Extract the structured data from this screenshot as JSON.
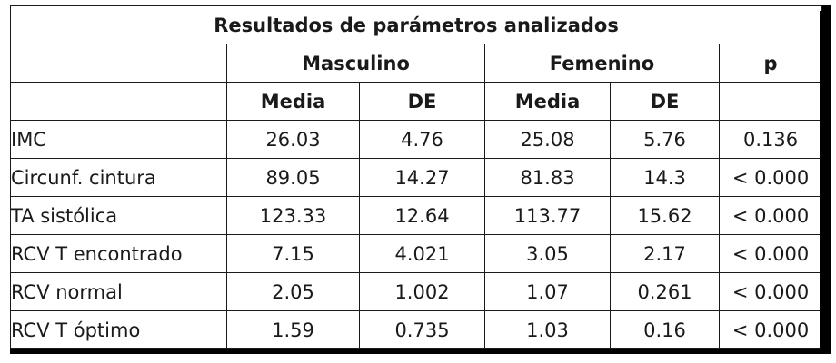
{
  "title": "Resultados de parámetros analizados",
  "groups": {
    "male": "Masculino",
    "female": "Femenino",
    "p": "p"
  },
  "subheaders": {
    "mean": "Media",
    "sd": "DE"
  },
  "rows": [
    {
      "label": "IMC",
      "m_mean": "26.03",
      "m_sd": "4.76",
      "f_mean": "25.08",
      "f_sd": "5.76",
      "p": "0.136"
    },
    {
      "label": "Circunf. cintura",
      "m_mean": "89.05",
      "m_sd": "14.27",
      "f_mean": "81.83",
      "f_sd": "14.3",
      "p": "< 0.000"
    },
    {
      "label": "TA sistólica",
      "m_mean": "123.33",
      "m_sd": "12.64",
      "f_mean": "113.77",
      "f_sd": "15.62",
      "p": "< 0.000"
    },
    {
      "label": "RCV T encontrado",
      "m_mean": "7.15",
      "m_sd": "4.021",
      "f_mean": "3.05",
      "f_sd": "2.17",
      "p": "< 0.000"
    },
    {
      "label": "RCV normal",
      "m_mean": "2.05",
      "m_sd": "1.002",
      "f_mean": "1.07",
      "f_sd": "0.261",
      "p": "< 0.000"
    },
    {
      "label": "RCV T óptimo",
      "m_mean": "1.59",
      "m_sd": "0.735",
      "f_mean": "1.03",
      "f_sd": "0.16",
      "p": "< 0.000"
    }
  ]
}
